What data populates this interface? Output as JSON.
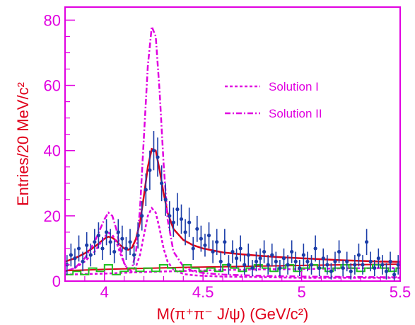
{
  "chart_data": {
    "type": "line",
    "xlabel": "M(π⁺π⁻ J/ψ) (GeV/c²)",
    "ylabel": "Entries/20 MeV/c²",
    "xlim": [
      3.8,
      5.5
    ],
    "ylim": [
      0,
      84
    ],
    "x_ticks": [
      4,
      4.5,
      5,
      5.5
    ],
    "x_tick_labels": [
      "4",
      "4.5",
      "5",
      "5.5"
    ],
    "y_ticks": [
      0,
      20,
      40,
      60,
      80
    ],
    "y_tick_labels": [
      "0",
      "20",
      "40",
      "60",
      "80"
    ],
    "legend": {
      "placement": "top-right"
    },
    "colors": {
      "axis": "#e000e0",
      "label": "#e0001a",
      "data": "#1a3ca8",
      "fit": "#d8001a",
      "background": "#20c020",
      "solutions": "#e000e0"
    },
    "data_points": {
      "name": "",
      "x": [
        3.81,
        3.83,
        3.85,
        3.87,
        3.89,
        3.91,
        3.93,
        3.95,
        3.97,
        3.99,
        4.01,
        4.03,
        4.05,
        4.07,
        4.09,
        4.11,
        4.13,
        4.15,
        4.17,
        4.19,
        4.21,
        4.23,
        4.25,
        4.27,
        4.29,
        4.31,
        4.33,
        4.35,
        4.37,
        4.39,
        4.41,
        4.43,
        4.45,
        4.47,
        4.49,
        4.51,
        4.53,
        4.55,
        4.57,
        4.59,
        4.61,
        4.63,
        4.65,
        4.67,
        4.69,
        4.71,
        4.73,
        4.75,
        4.77,
        4.79,
        4.81,
        4.83,
        4.85,
        4.87,
        4.89,
        4.91,
        4.93,
        4.95,
        4.97,
        4.99,
        5.01,
        5.03,
        5.05,
        5.07,
        5.09,
        5.11,
        5.13,
        5.15,
        5.17,
        5.19,
        5.21,
        5.23,
        5.25,
        5.27,
        5.29,
        5.31,
        5.33,
        5.35,
        5.37,
        5.39,
        5.41,
        5.43,
        5.45,
        5.47,
        5.49
      ],
      "y": [
        5,
        8,
        7,
        10,
        6,
        11,
        8,
        12,
        14,
        10,
        15,
        12,
        9,
        15,
        13,
        10,
        12,
        8,
        14,
        20,
        28,
        34,
        40,
        38,
        30,
        25,
        20,
        18,
        22,
        19,
        15,
        18,
        10,
        16,
        13,
        11,
        14,
        9,
        12,
        6,
        12,
        5,
        9,
        7,
        10,
        5,
        8,
        4,
        6,
        7,
        9,
        5,
        8,
        6,
        4,
        7,
        5,
        9,
        6,
        4,
        8,
        6,
        5,
        10,
        4,
        7,
        5,
        3,
        6,
        9,
        4,
        6,
        3,
        5,
        8,
        5,
        12,
        6,
        4,
        7,
        5,
        3,
        6,
        2,
        5
      ],
      "err": [
        3,
        3.5,
        3,
        4,
        3,
        4,
        3.5,
        4,
        4,
        3.5,
        4,
        4,
        3.5,
        4,
        4,
        3.5,
        4,
        3,
        4,
        4.5,
        5,
        6,
        6,
        6,
        5.5,
        5,
        4.5,
        4.5,
        5,
        4.5,
        4,
        4.5,
        3.5,
        4,
        4,
        3.5,
        4,
        3.5,
        4,
        3,
        4,
        3,
        3.5,
        3,
        4,
        3,
        3.5,
        2.5,
        3,
        3,
        3.5,
        3,
        3.5,
        3,
        2.5,
        3,
        3,
        3.5,
        3,
        2.5,
        3.5,
        3,
        3,
        4,
        2.5,
        3,
        3,
        2.5,
        3,
        3.5,
        2.5,
        3,
        2.5,
        3,
        3.5,
        3,
        4,
        3,
        2.5,
        3,
        3,
        2.5,
        3,
        2,
        3
      ]
    },
    "series": [
      {
        "name": "",
        "style": "solid",
        "x": [
          3.8,
          3.85,
          3.9,
          3.95,
          4.0,
          4.02,
          4.04,
          4.06,
          4.08,
          4.1,
          4.12,
          4.14,
          4.16,
          4.18,
          4.2,
          4.22,
          4.24,
          4.26,
          4.28,
          4.3,
          4.32,
          4.35,
          4.4,
          4.45,
          4.5,
          4.6,
          4.7,
          4.8,
          4.9,
          5.0,
          5.2,
          5.4,
          5.5
        ],
        "y": [
          6,
          7,
          8.5,
          10.5,
          13,
          13.6,
          13.3,
          12.4,
          11,
          10,
          9.6,
          10.3,
          13,
          18,
          26,
          35,
          40.5,
          40,
          34,
          27,
          21,
          16,
          12.6,
          11,
          10,
          8.8,
          8.2,
          7.7,
          7.3,
          7,
          6.4,
          6,
          5.9
        ]
      },
      {
        "name": "Solution I",
        "style": "dashed",
        "x": [
          3.8,
          3.85,
          3.9,
          3.95,
          4.0,
          4.02,
          4.04,
          4.06,
          4.08,
          4.1,
          4.12,
          4.14,
          4.16,
          4.18,
          4.2,
          4.22,
          4.24,
          4.26,
          4.28,
          4.3,
          4.32,
          4.35,
          4.4,
          4.45,
          4.5,
          4.6,
          4.7,
          4.8,
          4.9,
          5.0,
          5.2,
          5.4,
          5.5
        ],
        "y": [
          3,
          4,
          6,
          9,
          13.5,
          14.8,
          14.2,
          12,
          8.5,
          5.5,
          3.5,
          3,
          4.5,
          8,
          14,
          20,
          22.4,
          21,
          16,
          10,
          6,
          3.5,
          2.2,
          1.8,
          1.6,
          1.4,
          1.3,
          1.2,
          1.1,
          1,
          1,
          1,
          1
        ]
      },
      {
        "name": "Solution II",
        "style": "dash-dot",
        "x": [
          3.8,
          3.85,
          3.9,
          3.95,
          4.0,
          4.02,
          4.04,
          4.06,
          4.08,
          4.1,
          4.12,
          4.14,
          4.16,
          4.18,
          4.2,
          4.22,
          4.24,
          4.26,
          4.28,
          4.3,
          4.32,
          4.35,
          4.4,
          4.45,
          4.5,
          4.6,
          4.7,
          4.8,
          4.9,
          5.0,
          5.2,
          5.4,
          5.5
        ],
        "y": [
          3,
          4,
          7,
          12,
          19,
          21,
          20,
          16,
          10,
          5.5,
          3.5,
          4,
          9,
          22,
          44,
          66,
          78,
          75,
          58,
          36,
          19,
          9,
          4.5,
          3,
          2.5,
          2,
          1.8,
          1.6,
          1.5,
          1.4,
          1.3,
          1.2,
          1.2
        ]
      },
      {
        "name": "",
        "style": "dashed",
        "x": [
          3.8,
          4.0,
          4.2,
          4.4,
          4.6,
          4.8,
          5.0,
          5.2,
          5.4,
          5.5
        ],
        "y": [
          2,
          2.3,
          2.8,
          3.1,
          3.4,
          3.6,
          3.7,
          3.9,
          4.0,
          4.0
        ]
      },
      {
        "name": "",
        "style": "solid-thin",
        "x": [
          3.8,
          4.0,
          4.2,
          4.4,
          4.6,
          4.8,
          5.0,
          5.2,
          5.4,
          5.5
        ],
        "y": [
          3.2,
          3.6,
          3.9,
          4.2,
          4.4,
          4.6,
          4.8,
          5.0,
          5.1,
          5.2
        ]
      },
      {
        "name": "",
        "style": "step",
        "x": [
          3.8,
          3.84,
          3.88,
          3.92,
          3.96,
          4.0,
          4.04,
          4.08,
          4.12,
          4.16,
          4.2,
          4.24,
          4.28,
          4.32,
          4.36,
          4.4,
          4.44,
          4.48,
          4.52,
          4.56,
          4.6,
          4.64,
          4.68,
          4.72,
          4.76,
          4.8,
          4.84,
          4.88,
          4.92,
          4.96,
          5.0,
          5.04,
          5.08,
          5.12,
          5.16,
          5.2,
          5.24,
          5.28,
          5.32,
          5.36,
          5.4,
          5.44,
          5.48
        ],
        "y": [
          2,
          3,
          2,
          4,
          3,
          5,
          2,
          3,
          4,
          3,
          4,
          3,
          5,
          4,
          3,
          5,
          4,
          3,
          4,
          3,
          5,
          4,
          3,
          4,
          5,
          4,
          3,
          4,
          5,
          3,
          4,
          5,
          4,
          3,
          4,
          5,
          4,
          3,
          4,
          5,
          4,
          3,
          4
        ]
      }
    ],
    "legend_entries": [
      {
        "label": "Solution I",
        "style": "dashed"
      },
      {
        "label": "Solution II",
        "style": "dash-dot"
      }
    ]
  }
}
